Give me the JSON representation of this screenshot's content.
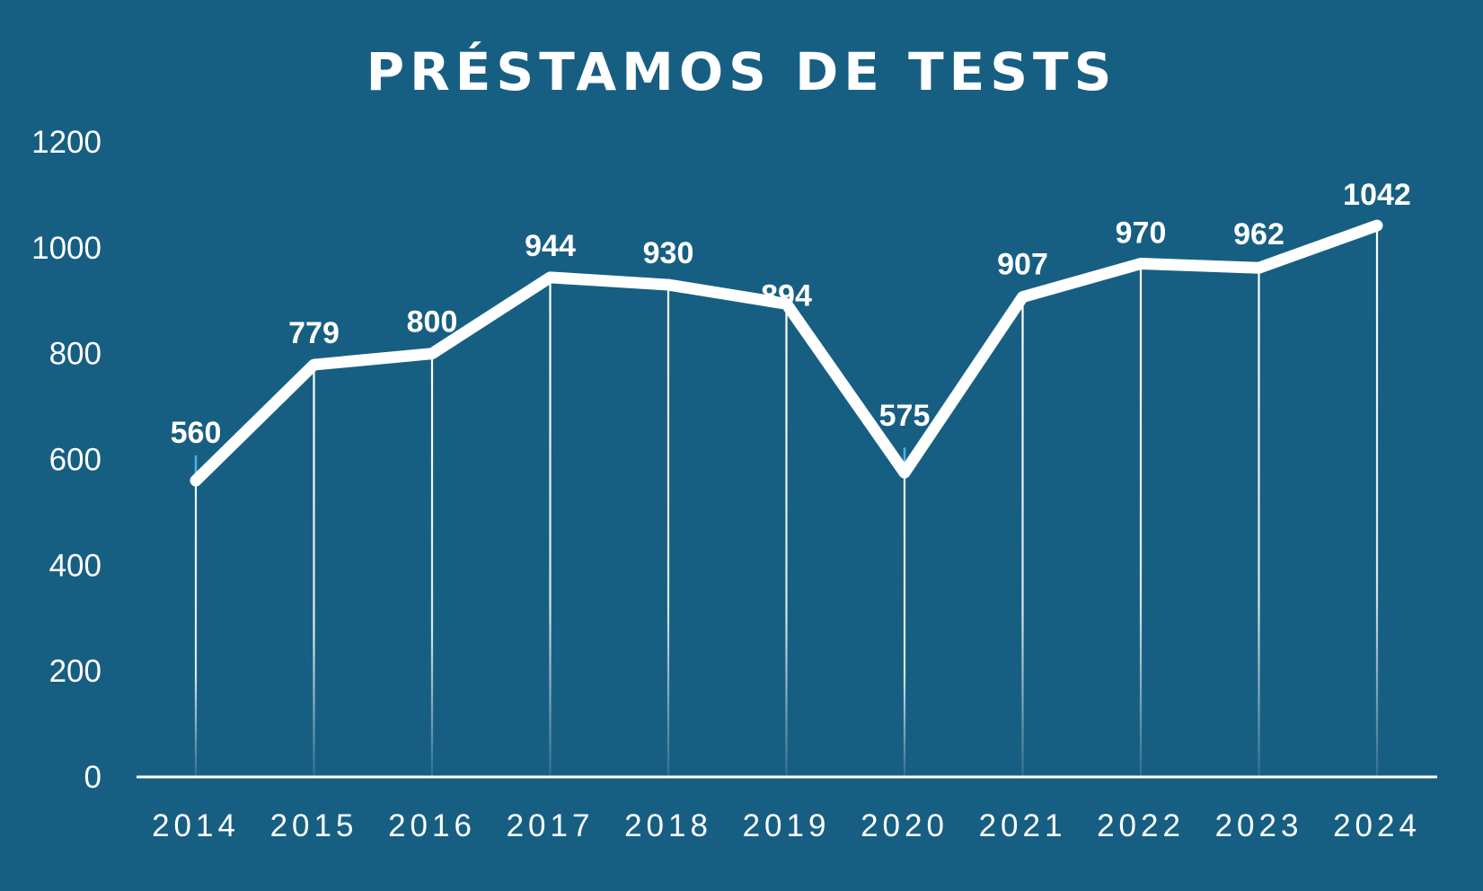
{
  "chart_data": {
    "type": "line",
    "title": "PRÉSTAMOS DE TESTS",
    "xlabel": "",
    "ylabel": "",
    "categories": [
      "2014",
      "2015",
      "2016",
      "2017",
      "2018",
      "2019",
      "2020",
      "2021",
      "2022",
      "2023",
      "2024"
    ],
    "series": [
      {
        "values": [
          560,
          779,
          800,
          944,
          930,
          894,
          575,
          907,
          970,
          962,
          1042
        ]
      }
    ],
    "ylim": [
      0,
      1200
    ],
    "yticks": [
      "0",
      "200",
      "400",
      "600",
      "800",
      "1000",
      "1200"
    ],
    "data_labels": [
      "560",
      "779",
      "800",
      "944",
      "930",
      "894",
      "575",
      "907",
      "970",
      "962",
      "1042"
    ],
    "grid": false,
    "drop_lines": true,
    "colors": {
      "background": "#175f82",
      "line": "#ffffff",
      "text": "#ffffff",
      "accent": "#4db3e6"
    }
  }
}
